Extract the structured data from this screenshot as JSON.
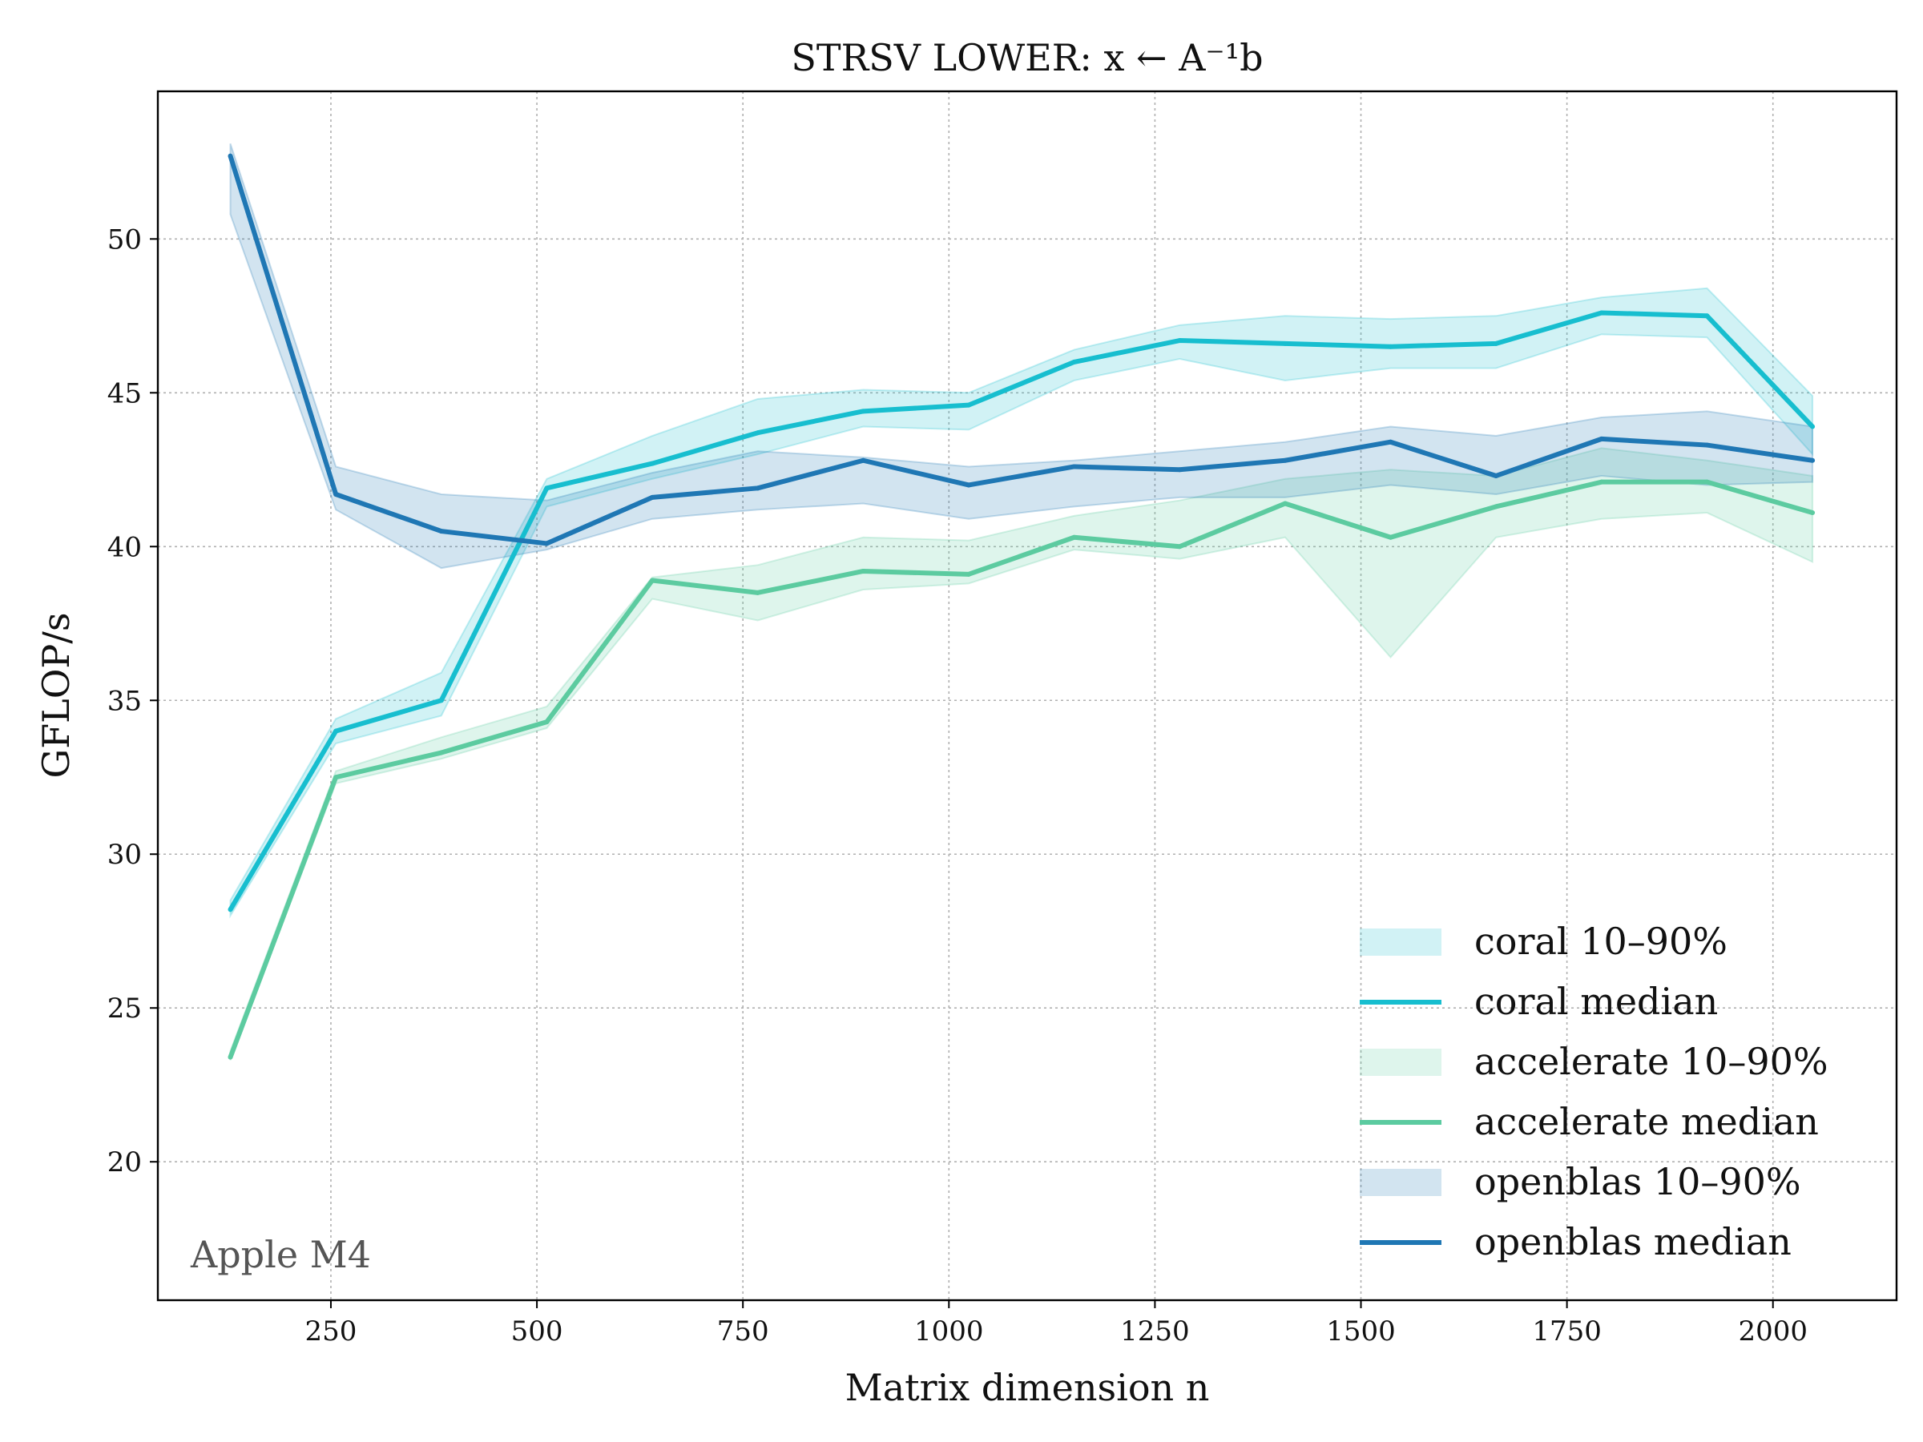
{
  "chart_data": {
    "type": "line",
    "title": "STRSV LOWER: x ← A⁻¹b",
    "xlabel": "Matrix dimension n",
    "ylabel": "GFLOP/s",
    "xlim": [
      40,
      2150
    ],
    "ylim": [
      15.5,
      54.8
    ],
    "xticks": [
      250,
      500,
      750,
      1000,
      1250,
      1500,
      1750,
      2000
    ],
    "yticks": [
      20,
      25,
      30,
      35,
      40,
      45,
      50
    ],
    "grid": true,
    "legend_position": "lower right",
    "x": [
      128,
      256,
      384,
      512,
      640,
      768,
      896,
      1024,
      1152,
      1280,
      1408,
      1536,
      1664,
      1792,
      1920,
      2048
    ],
    "series": [
      {
        "name": "coral",
        "color": "#17becf",
        "median": [
          28.2,
          34.0,
          35.0,
          41.9,
          42.7,
          43.7,
          44.4,
          44.6,
          46.0,
          46.7,
          46.6,
          46.5,
          46.6,
          47.6,
          47.5,
          43.9
        ],
        "p10": [
          28.0,
          33.6,
          34.5,
          41.3,
          42.2,
          43.0,
          43.9,
          43.8,
          45.4,
          46.1,
          45.4,
          45.8,
          45.8,
          46.9,
          46.8,
          43.0
        ],
        "p90": [
          28.5,
          34.4,
          35.9,
          42.2,
          43.6,
          44.8,
          45.1,
          45.0,
          46.4,
          47.2,
          47.5,
          47.4,
          47.5,
          48.1,
          48.4,
          44.9
        ]
      },
      {
        "name": "accelerate",
        "color": "#5ccba0",
        "median": [
          23.4,
          32.5,
          33.3,
          34.3,
          38.9,
          38.5,
          39.2,
          39.1,
          40.3,
          40.0,
          41.4,
          40.3,
          41.3,
          42.1,
          42.1,
          41.1
        ],
        "p10": [
          23.3,
          32.3,
          33.1,
          34.1,
          38.3,
          37.6,
          38.6,
          38.8,
          39.9,
          39.6,
          40.3,
          36.4,
          40.3,
          40.9,
          41.1,
          39.5
        ],
        "p90": [
          23.6,
          32.7,
          33.8,
          34.8,
          39.0,
          39.4,
          40.3,
          40.2,
          41.0,
          41.5,
          42.2,
          42.5,
          42.3,
          43.2,
          42.8,
          42.3
        ]
      },
      {
        "name": "openblas",
        "color": "#1f77b4",
        "median": [
          52.7,
          41.7,
          40.5,
          40.1,
          41.6,
          41.9,
          42.8,
          42.0,
          42.6,
          42.5,
          42.8,
          43.4,
          42.3,
          43.5,
          43.3,
          42.8
        ],
        "p10": [
          50.8,
          41.2,
          39.3,
          39.9,
          40.9,
          41.2,
          41.4,
          40.9,
          41.3,
          41.6,
          41.6,
          42.0,
          41.7,
          42.3,
          42.0,
          42.1
        ],
        "p90": [
          53.1,
          42.6,
          41.7,
          41.5,
          42.4,
          43.1,
          42.9,
          42.6,
          42.8,
          43.1,
          43.4,
          43.9,
          43.6,
          44.2,
          44.4,
          43.9
        ]
      }
    ],
    "legend": [
      {
        "label": "coral 10–90%",
        "kind": "band",
        "color": "#17becf"
      },
      {
        "label": "coral median",
        "kind": "line",
        "color": "#17becf"
      },
      {
        "label": "accelerate 10–90%",
        "kind": "band",
        "color": "#5ccba0"
      },
      {
        "label": "accelerate median",
        "kind": "line",
        "color": "#5ccba0"
      },
      {
        "label": "openblas 10–90%",
        "kind": "band",
        "color": "#1f77b4"
      },
      {
        "label": "openblas median",
        "kind": "line",
        "color": "#1f77b4"
      }
    ],
    "annotation": "Apple M4"
  }
}
